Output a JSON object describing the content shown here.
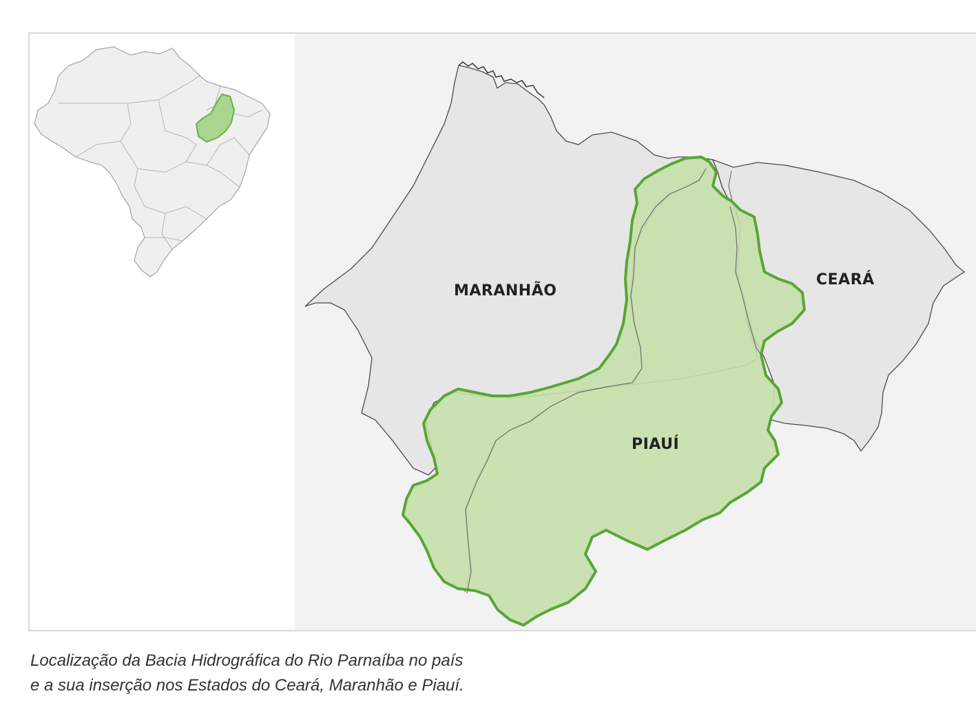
{
  "map": {
    "labels": {
      "maranhao": "MARANHÃO",
      "ceara": "CEARÁ",
      "piaui": "PIAUÍ"
    },
    "colors": {
      "state_fill": "#e6e6e6",
      "state_stroke": "#4a4a4a",
      "basin_fill": "#c5dfaa",
      "basin_stroke": "#5aa537",
      "background": "#f2f2f2"
    },
    "inset": {
      "highlight_color": "#a9d58c"
    }
  },
  "caption": {
    "line1": "Localização da Bacia Hidrográfica do Rio Parnaíba no país",
    "line2": "e a sua inserção nos Estados do Ceará, Maranhão e Piauí."
  }
}
